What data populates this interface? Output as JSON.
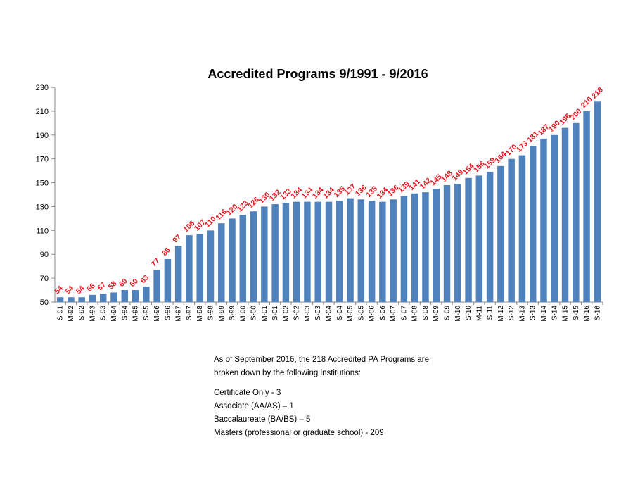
{
  "chart_data": {
    "type": "bar",
    "title": "Accredited Programs 9/1991 - 9/2016",
    "xlabel": "",
    "ylabel": "",
    "ylim": [
      50,
      230
    ],
    "yticks": [
      "50",
      "70",
      "90",
      "110",
      "130",
      "150",
      "170",
      "190",
      "210",
      "230"
    ],
    "grid": false,
    "legend": "none",
    "bar_color": "#4f81bd",
    "label_color": "#e8141c",
    "categories": [
      "S-91",
      "M-92",
      "S-92",
      "M-93",
      "S-93",
      "M-94",
      "S-94",
      "M-95",
      "S-95",
      "M-96",
      "S-96",
      "M-97",
      "S-97",
      "M-98",
      "S-98",
      "M-99",
      "S-99",
      "M-00",
      "S-00",
      "M-01",
      "S-01",
      "M-02",
      "S-02",
      "M-03",
      "S-03",
      "M-04",
      "S-04",
      "M-05",
      "S-05",
      "M-06",
      "S-06",
      "M-07",
      "S-07",
      "M-08",
      "S-08",
      "M-09",
      "S-09",
      "M-10",
      "S-10",
      "M-11",
      "S-11",
      "M-12",
      "S-12",
      "M-13",
      "S-13",
      "M-14",
      "S-14",
      "M-15",
      "S-15",
      "M-16",
      "S-16"
    ],
    "values": [
      54,
      54,
      54,
      56,
      57,
      58,
      60,
      60,
      63,
      77,
      86,
      97,
      106,
      107,
      110,
      116,
      120,
      123,
      126,
      130,
      132,
      133,
      134,
      134,
      134,
      134,
      135,
      137,
      136,
      135,
      134,
      136,
      139,
      141,
      142,
      145,
      148,
      149,
      154,
      156,
      159,
      164,
      170,
      173,
      181,
      187,
      190,
      196,
      200,
      210,
      218
    ]
  },
  "notes": {
    "intro_line1": "As of September 2016, the 218 Accredited PA Programs are",
    "intro_line2": "broken down by the following institutions:",
    "items": [
      "Certificate Only - 3",
      "Associate (AA/AS) – 1",
      "Baccalaureate (BA/BS) – 5",
      "Masters (professional or graduate school) - 209"
    ]
  }
}
